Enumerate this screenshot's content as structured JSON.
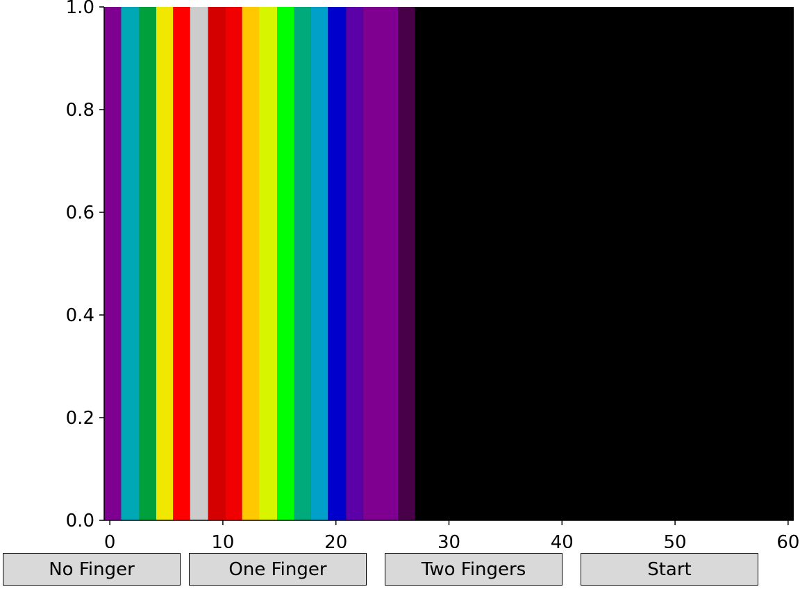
{
  "chart_data": {
    "type": "bar",
    "title": "",
    "xlabel": "",
    "ylabel": "",
    "xlim": [
      -0.5,
      60.5
    ],
    "ylim": [
      0,
      1
    ],
    "x_ticks": [
      0,
      10,
      20,
      30,
      40,
      50,
      60
    ],
    "x_tick_labels": [
      "0",
      "10",
      "20",
      "30",
      "40",
      "50",
      "60"
    ],
    "y_ticks": [
      0,
      0.2,
      0.4,
      0.6,
      0.8,
      1
    ],
    "y_tick_labels": [
      "0.0",
      "0.2",
      "0.4",
      "0.6",
      "0.8",
      "1.0"
    ],
    "grid": false,
    "background_color": "#000000",
    "bands": [
      {
        "x0": -0.5,
        "x1": 1,
        "color": "#7f0090"
      },
      {
        "x0": 1,
        "x1": 2.6,
        "color": "#00a8b5"
      },
      {
        "x0": 2.6,
        "x1": 4.1,
        "color": "#00a03c"
      },
      {
        "x0": 4.1,
        "x1": 5.6,
        "color": "#f0e800"
      },
      {
        "x0": 5.6,
        "x1": 7.1,
        "color": "#ff0000"
      },
      {
        "x0": 7.1,
        "x1": 8.7,
        "color": "#cccccc"
      },
      {
        "x0": 8.7,
        "x1": 10.2,
        "color": "#d40000"
      },
      {
        "x0": 10.2,
        "x1": 11.7,
        "color": "#f00000"
      },
      {
        "x0": 11.7,
        "x1": 13.2,
        "color": "#ffc800"
      },
      {
        "x0": 13.2,
        "x1": 14.8,
        "color": "#d8f500"
      },
      {
        "x0": 14.8,
        "x1": 16.3,
        "color": "#00ff00"
      },
      {
        "x0": 16.3,
        "x1": 17.8,
        "color": "#00aa7a"
      },
      {
        "x0": 17.8,
        "x1": 19.3,
        "color": "#00a0c8"
      },
      {
        "x0": 19.3,
        "x1": 20.9,
        "color": "#0000cc"
      },
      {
        "x0": 20.9,
        "x1": 22.4,
        "color": "#5c00a8"
      },
      {
        "x0": 22.4,
        "x1": 25.5,
        "color": "#7f0090"
      },
      {
        "x0": 25.5,
        "x1": 27,
        "color": "#480048"
      }
    ]
  },
  "buttons": [
    {
      "label": "No Finger"
    },
    {
      "label": "One Finger"
    },
    {
      "label": "Two Fingers"
    },
    {
      "label": "Start"
    }
  ]
}
